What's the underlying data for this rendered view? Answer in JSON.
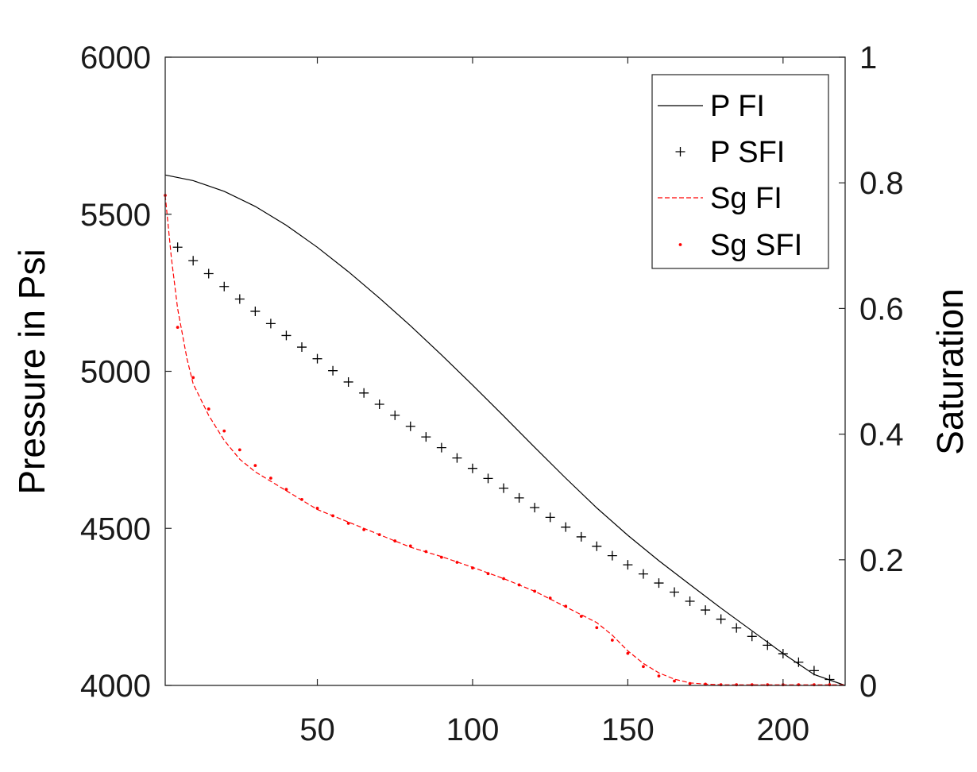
{
  "chart_data": {
    "type": "line",
    "title": "",
    "xlabel": "",
    "ylabel": "Pressure in Psi",
    "y2label": "Saturation",
    "xlim": [
      1,
      220
    ],
    "ylim": [
      4000,
      6000
    ],
    "y2lim": [
      0,
      1
    ],
    "xticks": [
      50,
      100,
      150,
      200
    ],
    "yticks": [
      4000,
      4500,
      5000,
      5500,
      6000
    ],
    "y2ticks": [
      0,
      0.2,
      0.4,
      0.6,
      0.8,
      1
    ],
    "grid": false,
    "legend_position": "top-right",
    "series": [
      {
        "name": "P FI",
        "axis": "left",
        "style": "solid",
        "color": "#000000",
        "x": [
          1,
          10,
          20,
          30,
          40,
          50,
          60,
          70,
          80,
          90,
          100,
          110,
          120,
          130,
          140,
          150,
          160,
          170,
          180,
          190,
          200,
          210,
          220
        ],
        "y": [
          5625,
          5607,
          5573,
          5525,
          5465,
          5395,
          5317,
          5233,
          5145,
          5052,
          4956,
          4858,
          4758,
          4660,
          4565,
          4478,
          4397,
          4321,
          4246,
          4174,
          4102,
          4035,
          4000
        ]
      },
      {
        "name": "P SFI",
        "axis": "left",
        "style": "plus",
        "color": "#000000",
        "x": [
          5,
          10,
          15,
          20,
          25,
          30,
          35,
          40,
          45,
          50,
          55,
          60,
          65,
          70,
          75,
          80,
          85,
          90,
          95,
          100,
          105,
          110,
          115,
          120,
          125,
          130,
          135,
          140,
          145,
          150,
          155,
          160,
          165,
          170,
          175,
          180,
          185,
          190,
          195,
          200,
          205,
          210,
          215
        ],
        "y": [
          5395,
          5352,
          5311,
          5270,
          5230,
          5191,
          5152,
          5114,
          5077,
          5040,
          5002,
          4966,
          4931,
          4895,
          4860,
          4825,
          4791,
          4757,
          4724,
          4691,
          4659,
          4628,
          4597,
          4566,
          4535,
          4504,
          4473,
          4443,
          4413,
          4384,
          4355,
          4326,
          4297,
          4268,
          4240,
          4211,
          4183,
          4156,
          4128,
          4101,
          4074,
          4047,
          4019
        ]
      },
      {
        "name": "Sg FI",
        "axis": "right",
        "style": "dashed",
        "color": "#ff0000",
        "x": [
          1,
          3,
          5,
          8,
          10,
          15,
          20,
          25,
          30,
          40,
          50,
          60,
          70,
          80,
          90,
          100,
          110,
          120,
          130,
          140,
          145,
          150,
          155,
          160,
          165,
          170,
          175,
          180,
          190,
          200,
          210,
          220
        ],
        "y": [
          0.78,
          0.68,
          0.6,
          0.52,
          0.48,
          0.43,
          0.39,
          0.36,
          0.34,
          0.31,
          0.28,
          0.26,
          0.24,
          0.22,
          0.205,
          0.188,
          0.17,
          0.15,
          0.125,
          0.1,
          0.08,
          0.055,
          0.035,
          0.02,
          0.01,
          0.004,
          0.002,
          0.001,
          0.001,
          0.001,
          0.001,
          0.001
        ]
      },
      {
        "name": "Sg SFI",
        "axis": "right",
        "style": "dot",
        "color": "#ff0000",
        "x": [
          1,
          5,
          10,
          15,
          20,
          25,
          30,
          35,
          40,
          45,
          50,
          55,
          60,
          65,
          70,
          75,
          80,
          85,
          90,
          95,
          100,
          105,
          110,
          115,
          120,
          125,
          130,
          135,
          140,
          145,
          150,
          155,
          160,
          165,
          170,
          175,
          180,
          185,
          190,
          195,
          200,
          205,
          210,
          215
        ],
        "y": [
          0.78,
          0.57,
          0.49,
          0.44,
          0.405,
          0.375,
          0.35,
          0.33,
          0.312,
          0.296,
          0.282,
          0.27,
          0.258,
          0.248,
          0.24,
          0.23,
          0.222,
          0.213,
          0.204,
          0.196,
          0.187,
          0.178,
          0.17,
          0.16,
          0.15,
          0.139,
          0.126,
          0.11,
          0.092,
          0.072,
          0.051,
          0.03,
          0.015,
          0.007,
          0.003,
          0.002,
          0.001,
          0.001,
          0.001,
          0.001,
          0.001,
          0.001,
          0.001,
          0.001
        ]
      }
    ]
  }
}
